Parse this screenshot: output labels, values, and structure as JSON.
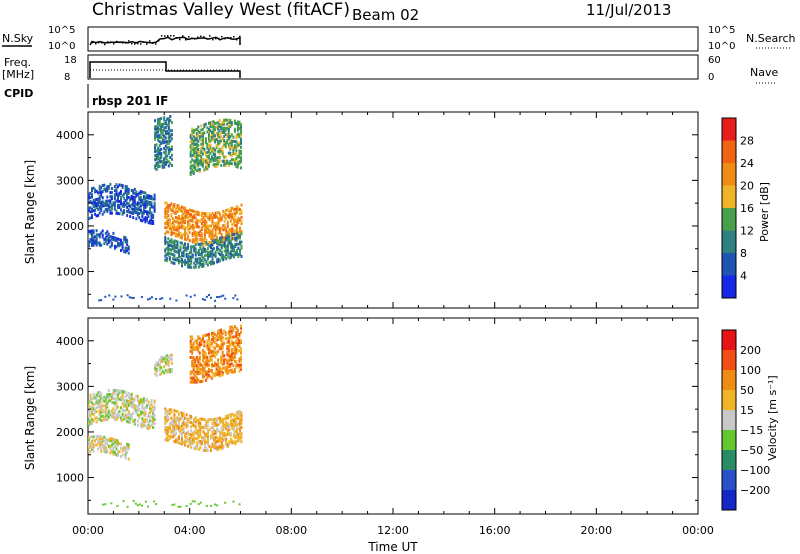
{
  "header": {
    "station": "Christmas Valley West (fitACF)",
    "beam": "Beam 02",
    "date": "11/Jul/2013"
  },
  "panels": {
    "nsky": {
      "label": "N.Sky",
      "right_label": "N.Search",
      "ticks_left": [
        "10^5",
        "10^0"
      ],
      "ticks_right": [
        "10^5",
        "10^0"
      ]
    },
    "freq": {
      "label_line1": "Freq.",
      "label_line2": "[MHz]",
      "right_label": "Nave",
      "ticks_left": [
        "18",
        "8"
      ],
      "ticks_right": [
        "60",
        "0"
      ]
    },
    "cpid": {
      "label": "CPID",
      "text": "rbsp 201 IF"
    }
  },
  "chart_data": [
    {
      "type": "heatmap",
      "name": "power",
      "ylabel": "Slant Range [km]",
      "yticks": [
        1000,
        2000,
        3000,
        4000
      ],
      "ylim": [
        200,
        4500
      ],
      "xlim_hours": [
        0,
        24
      ],
      "colorbar": {
        "title": "Power [dB]",
        "ticks": [
          "4",
          "8",
          "12",
          "16",
          "20",
          "24",
          "28"
        ],
        "colors": [
          "#1428e6",
          "#1f54b4",
          "#2f8080",
          "#4aa04a",
          "#f0b428",
          "#f08c14",
          "#f06414",
          "#e61e1e"
        ]
      },
      "bands": [
        {
          "t0": 0.0,
          "t1": 2.6,
          "r0": 2150,
          "r1": 2800,
          "level": 1
        },
        {
          "t0": 0.0,
          "t1": 1.6,
          "r0": 1450,
          "r1": 1800,
          "level": 1
        },
        {
          "t0": 2.6,
          "t1": 3.3,
          "r0": 3200,
          "r1": 4300,
          "level": 2
        },
        {
          "t0": 3.0,
          "t1": 6.0,
          "r0": 1700,
          "r1": 2400,
          "level": 5
        },
        {
          "t0": 3.0,
          "t1": 6.0,
          "r0": 1200,
          "r1": 1700,
          "level": 2
        },
        {
          "t0": 4.0,
          "t1": 6.0,
          "r0": 3200,
          "r1": 4200,
          "level": 3
        }
      ]
    },
    {
      "type": "heatmap",
      "name": "velocity",
      "ylabel": "Slant Range [km]",
      "yticks": [
        1000,
        2000,
        3000,
        4000
      ],
      "ylim": [
        200,
        4500
      ],
      "colorbar": {
        "title": "Velocity [m s⁻¹]",
        "ticks": [
          "200",
          "100",
          "50",
          "15",
          "−15",
          "−50",
          "−100",
          "−200"
        ],
        "colors": [
          "#1428c8",
          "#2850c8",
          "#288c64",
          "#64c832",
          "#c8c8c8",
          "#f0b428",
          "#f08c14",
          "#f05014",
          "#e61414"
        ]
      },
      "bands": [
        {
          "t0": 0.0,
          "t1": 2.6,
          "r0": 2150,
          "r1": 2800,
          "level": 4
        },
        {
          "t0": 0.0,
          "t1": 1.6,
          "r0": 1450,
          "r1": 1800,
          "level": 4
        },
        {
          "t0": 2.6,
          "t1": 3.3,
          "r0": 3200,
          "r1": 3600,
          "level": 4
        },
        {
          "t0": 3.0,
          "t1": 6.0,
          "r0": 1700,
          "r1": 2400,
          "level": 5
        },
        {
          "t0": 4.0,
          "t1": 6.0,
          "r0": 3200,
          "r1": 4200,
          "level": 6
        }
      ]
    }
  ],
  "xaxis": {
    "title": "Time UT",
    "ticks": [
      "00:00",
      "04:00",
      "08:00",
      "12:00",
      "16:00",
      "20:00",
      "00:00"
    ]
  }
}
